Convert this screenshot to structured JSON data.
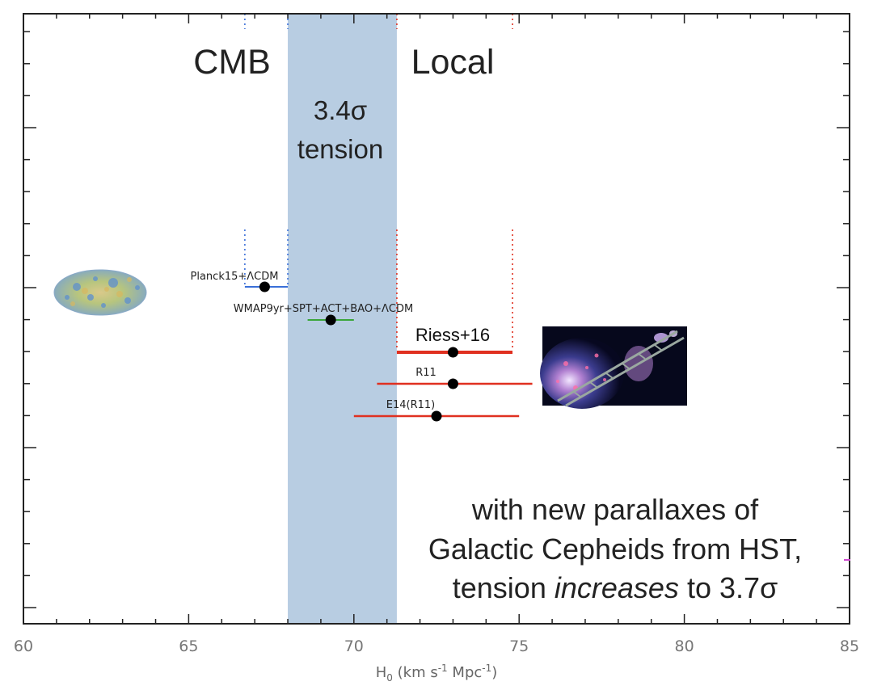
{
  "chart_data": {
    "type": "scatter",
    "xlabel": "H",
    "xlabel_sub": "0",
    "xlabel_units": " (km s",
    "xlabel_exp1": "-1",
    "xlabel_mid": " Mpc",
    "xlabel_exp2": "-1",
    "xlabel_end": ")",
    "xlim": [
      60,
      85
    ],
    "x_ticks": [
      60,
      65,
      70,
      75,
      80,
      85
    ],
    "tension_band": {
      "x0": 68.0,
      "x1": 71.3,
      "color": "#b8cde2"
    },
    "region_labels": {
      "left": "CMB",
      "right": "Local"
    },
    "band_label_line1": "3.4σ",
    "band_label_line2": "tension",
    "series": [
      {
        "name": "Planck15+ΛCDM",
        "x": 67.3,
        "xerr_low": 66.7,
        "xerr_high": 68.0,
        "color": "#3a6fd8"
      },
      {
        "name": "WMAP9yr+SPT+ACT+BAO+ΛCDM",
        "x": 69.3,
        "xerr_low": 68.6,
        "xerr_high": 70.0,
        "color": "#3aa63a"
      },
      {
        "name": "Riess+16",
        "x": 73.0,
        "xerr_low": 71.3,
        "xerr_high": 74.8,
        "color": "#e03020"
      },
      {
        "name": "R11",
        "x": 73.0,
        "xerr_low": 70.7,
        "xerr_high": 75.4,
        "color": "#e03020"
      },
      {
        "name": "E14(R11)",
        "x": 72.5,
        "xerr_low": 70.0,
        "xerr_high": 75.0,
        "color": "#e03020"
      }
    ],
    "dotted_lines": [
      {
        "x": 66.7,
        "color": "#3a6fd8"
      },
      {
        "x": 68.0,
        "color": "#3a6fd8"
      },
      {
        "x": 71.3,
        "color": "#e03020"
      },
      {
        "x": 74.8,
        "color": "#e03020"
      }
    ],
    "annotation": {
      "line1": "with new parallaxes of",
      "line2": "Galactic Cepheids from HST,",
      "line3_prefix": "tension ",
      "line3_italic": "increases",
      "line3_suffix": " to 3.7σ"
    },
    "grid": false
  },
  "images": {
    "cmb_map": "cmb-sky-map",
    "galaxy": "galaxy-distance-ladder"
  }
}
